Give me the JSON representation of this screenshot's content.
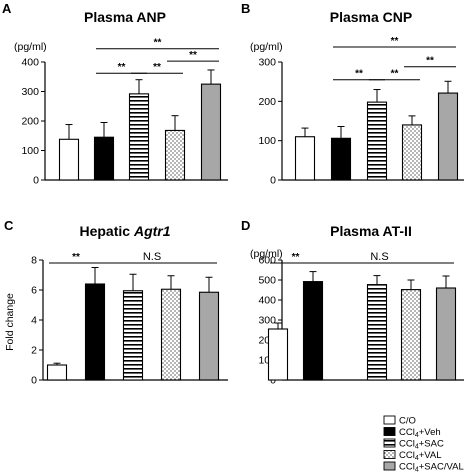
{
  "legend": {
    "items": [
      {
        "label": "C/O",
        "pattern": "white"
      },
      {
        "label": "CCl4+Veh",
        "pattern": "black"
      },
      {
        "label": "CCl4+SAC",
        "pattern": "hstripe"
      },
      {
        "label": "CCl4+VAL",
        "pattern": "dots"
      },
      {
        "label": "CCl4+SAC/VAL",
        "pattern": "gray"
      }
    ]
  },
  "colors": {
    "black": "#000000",
    "gray": "#a7a7a7",
    "white": "#ffffff"
  },
  "chart_data": [
    {
      "panel": "A",
      "type": "bar",
      "title": "Plasma ANP",
      "title_parts": [
        {
          "text": "Plasma ANP",
          "italic": false
        }
      ],
      "unit": "(pg/ml)",
      "xlabel": "",
      "ylabel": "",
      "ylim": [
        0,
        400
      ],
      "yticks": [
        0,
        100,
        200,
        300,
        400
      ],
      "categories": [
        "C/O",
        "CCl4+Veh",
        "CCl4+SAC",
        "CCl4+VAL",
        "CCl4+SAC/VAL"
      ],
      "values": [
        138,
        145,
        292,
        168,
        325
      ],
      "errors": [
        50,
        50,
        48,
        50,
        48
      ],
      "significance": [
        {
          "from": 1,
          "to": 4,
          "label": "**",
          "y": 445
        },
        {
          "from": 1,
          "to": 2,
          "label": "**",
          "y": 362
        },
        {
          "from": 2,
          "to": 3,
          "label": "**",
          "y": 362
        },
        {
          "from": 3,
          "to": 4,
          "label": "**",
          "y": 403
        }
      ]
    },
    {
      "panel": "B",
      "type": "bar",
      "title": "Plasma CNP",
      "title_parts": [
        {
          "text": "Plasma CNP",
          "italic": false
        }
      ],
      "unit": "(pg/ml)",
      "xlabel": "",
      "ylabel": "",
      "ylim": [
        0,
        300
      ],
      "yticks": [
        0,
        100,
        200,
        300
      ],
      "categories": [
        "C/O",
        "CCl4+Veh",
        "CCl4+SAC",
        "CCl4+VAL",
        "CCl4+SAC/VAL"
      ],
      "values": [
        110,
        106,
        198,
        140,
        221
      ],
      "errors": [
        22,
        30,
        32,
        23,
        30
      ],
      "significance": [
        {
          "from": 1,
          "to": 4,
          "label": "**",
          "y": 338
        },
        {
          "from": 1,
          "to": 2,
          "label": "**",
          "y": 255
        },
        {
          "from": 2,
          "to": 3,
          "label": "**",
          "y": 255
        },
        {
          "from": 3,
          "to": 4,
          "label": "**",
          "y": 288
        }
      ]
    },
    {
      "panel": "C",
      "type": "bar",
      "title": "Hepatic Agtr1",
      "title_parts": [
        {
          "text": "Hepatic ",
          "italic": false
        },
        {
          "text": "Agtr1",
          "italic": true
        }
      ],
      "unit": "",
      "xlabel": "",
      "ylabel": "Fold change",
      "ylim": [
        0,
        8
      ],
      "yticks": [
        0,
        2,
        4,
        6,
        8
      ],
      "categories": [
        "C/O",
        "CCl4+Veh",
        "CCl4+SAC",
        "CCl4+VAL",
        "CCl4+SAC/VAL"
      ],
      "values": [
        1.0,
        6.4,
        5.95,
        6.05,
        5.85
      ],
      "errors": [
        0.12,
        1.1,
        1.1,
        0.9,
        1.0
      ],
      "significance": [
        {
          "from": 0,
          "to": 1,
          "label": "**",
          "y": 8.0
        },
        {
          "from": 1,
          "to": 4,
          "label": "N.S",
          "y": 8.0
        }
      ]
    },
    {
      "panel": "D",
      "type": "bar",
      "title": "Plasma AT-II",
      "title_parts": [
        {
          "text": "Plasma AT-II",
          "italic": false
        }
      ],
      "unit": "(pg/ml)",
      "xlabel": "",
      "ylabel": "",
      "ylim": [
        0,
        600
      ],
      "yticks": [
        0,
        100,
        200,
        300,
        400,
        500,
        600
      ],
      "categories": [
        "C/O",
        "CCl4+Veh",
        "CCl4+SAC",
        "CCl4+VAL",
        "CCl4+SAC/VAL"
      ],
      "values": [
        255,
        492,
        477,
        452,
        460
      ],
      "errors": [
        30,
        50,
        45,
        48,
        60
      ],
      "significance": [
        {
          "from": 0,
          "to": 1,
          "label": "**",
          "y": 600
        },
        {
          "from": 1,
          "to": 4,
          "label": "N.S",
          "y": 600
        }
      ]
    }
  ]
}
